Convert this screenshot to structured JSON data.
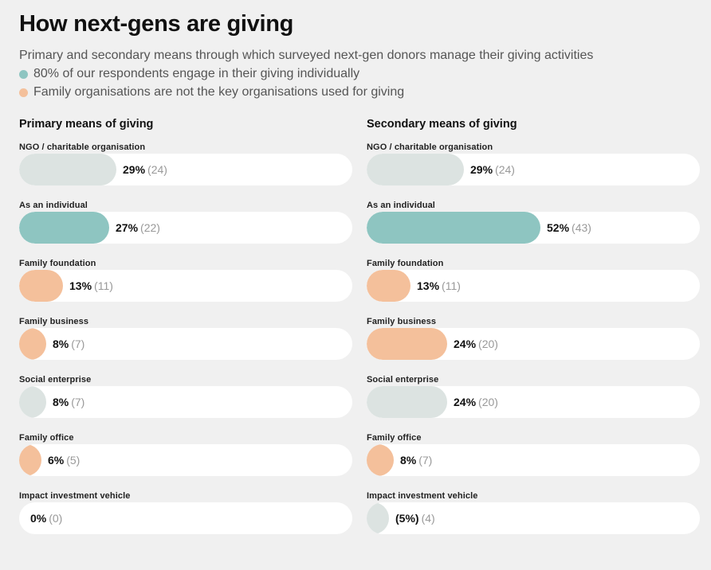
{
  "title": "How next-gens are giving",
  "subtitle": "Primary and secondary means through which surveyed next-gen donors manage their giving activities",
  "notes": [
    {
      "text": "80% of our respondents engage in their giving individually",
      "color": "#8ec5c1"
    },
    {
      "text": "Family organisations are not the key organisations used for giving",
      "color": "#f4c09b"
    }
  ],
  "colors": {
    "teal": "#8ec5c1",
    "peach": "#f4c09b",
    "grey": "#dce3e1",
    "track": "#ffffff"
  },
  "chart_data": [
    {
      "type": "bar",
      "title": "Primary means of giving",
      "categories": [
        "NGO / charitable organisation",
        "As an individual",
        "Family foundation",
        "Family business",
        "Social enterprise",
        "Family office",
        "Impact investment vehicle"
      ],
      "values": [
        29,
        27,
        13,
        8,
        8,
        6,
        0
      ],
      "counts": [
        24,
        22,
        11,
        7,
        7,
        5,
        0
      ],
      "value_labels": [
        "29%",
        "27%",
        "13%",
        "8%",
        "8%",
        "6%",
        "0%"
      ],
      "count_labels": [
        "(24)",
        "(22)",
        "(11)",
        "(7)",
        "(7)",
        "(5)",
        "(0)"
      ],
      "bar_colors": [
        "grey",
        "teal",
        "peach",
        "peach",
        "grey",
        "peach",
        "grey"
      ],
      "xlim": [
        0,
        100
      ]
    },
    {
      "type": "bar",
      "title": "Secondary means of giving",
      "categories": [
        "NGO / charitable organisation",
        "As an individual",
        "Family foundation",
        "Family business",
        "Social enterprise",
        "Family office",
        "Impact investment vehicle"
      ],
      "values": [
        29,
        52,
        13,
        24,
        24,
        8,
        5
      ],
      "counts": [
        24,
        43,
        11,
        20,
        20,
        7,
        4
      ],
      "value_labels": [
        "29%",
        "52%",
        "13%",
        "24%",
        "24%",
        "8%",
        "(5%)"
      ],
      "count_labels": [
        "(24)",
        "(43)",
        "(11)",
        "(20)",
        "(20)",
        "(7)",
        "(4)"
      ],
      "bar_colors": [
        "grey",
        "teal",
        "peach",
        "peach",
        "grey",
        "peach",
        "grey"
      ],
      "xlim": [
        0,
        100
      ]
    }
  ]
}
